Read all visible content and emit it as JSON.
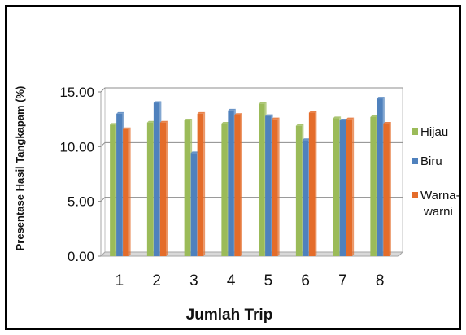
{
  "chart_data": {
    "type": "bar",
    "categories": [
      "1",
      "2",
      "3",
      "4",
      "5",
      "6",
      "7",
      "8"
    ],
    "series": [
      {
        "name": "Hijau",
        "color": "#9BBB59",
        "values": [
          12.0,
          12.2,
          12.4,
          12.1,
          13.9,
          11.9,
          12.6,
          12.7
        ]
      },
      {
        "name": "Biru",
        "color": "#4F81BD",
        "values": [
          13.0,
          14.0,
          9.4,
          13.3,
          12.8,
          10.6,
          12.4,
          14.4
        ]
      },
      {
        "name": "Warna-warni",
        "color": "#E46C2A",
        "values": [
          11.6,
          12.2,
          13.0,
          12.9,
          12.5,
          13.1,
          12.5,
          12.1
        ]
      }
    ],
    "xlabel": "Jumlah Trip",
    "ylabel": "Presentase Hasil Tangkapam (%)",
    "ylim": [
      0,
      15
    ],
    "yticks": [
      "0.00",
      "5.00",
      "10.00",
      "15.00"
    ],
    "grid": true,
    "legend_position": "right"
  }
}
